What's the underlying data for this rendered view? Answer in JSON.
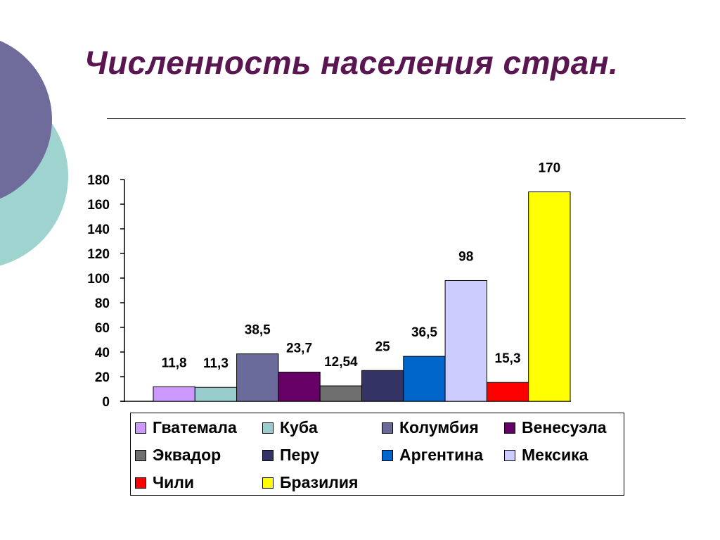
{
  "slide": {
    "title": "Численность населения стран."
  },
  "theme": {
    "title_color": "#5a1650",
    "decor_colors": [
      "#9fd3cf",
      "#6f6c9c"
    ]
  },
  "chart_data": {
    "type": "bar",
    "ylim": [
      0,
      180
    ],
    "y_ticks": [
      "0",
      "20",
      "40",
      "60",
      "80",
      "100",
      "120",
      "140",
      "160",
      "180"
    ],
    "grid": false,
    "legend_position": "bottom",
    "series": [
      {
        "name": "Гватемала",
        "value": 11.8,
        "label": "11,8",
        "color": "#cc99ff"
      },
      {
        "name": "Куба",
        "value": 11.3,
        "label": "11,3",
        "color": "#99cccc"
      },
      {
        "name": "Колумбия",
        "value": 38.5,
        "label": "38,5",
        "color": "#6b6b9b"
      },
      {
        "name": "Венесуэла",
        "value": 23.7,
        "label": "23,7",
        "color": "#660066"
      },
      {
        "name": "Эквадор",
        "value": 12.54,
        "label": "12,54",
        "color": "#6f6f6f"
      },
      {
        "name": "Перу",
        "value": 25,
        "label": "25",
        "color": "#333366"
      },
      {
        "name": "Аргентина",
        "value": 36.5,
        "label": "36,5",
        "color": "#0066cc"
      },
      {
        "name": "Мексика",
        "value": 98,
        "label": "98",
        "color": "#ccccff"
      },
      {
        "name": "Чили",
        "value": 15.3,
        "label": "15,3",
        "color": "#ff0000"
      },
      {
        "name": "Бразилия",
        "value": 170,
        "label": "170",
        "color": "#ffff00"
      }
    ]
  }
}
